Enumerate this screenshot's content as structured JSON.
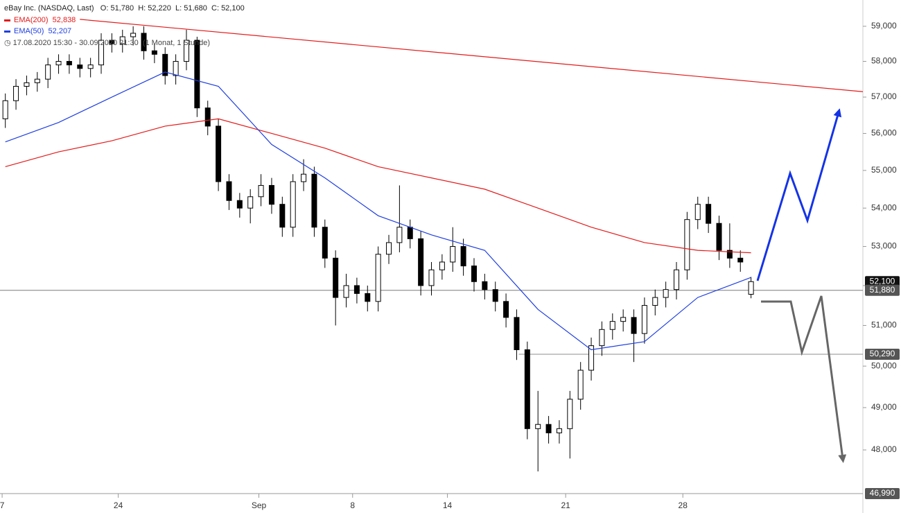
{
  "header": {
    "instrument": "eBay Inc. (NASDAQ, Last)",
    "ohlc": "O: 51,780  H: 52,220  L: 51,680  C: 52,100",
    "ema200": "EMA(200)",
    "ema200_value": "52,838",
    "ema50": "EMA(50)",
    "ema50_value": "52,207",
    "period": "17.08.2020 15:30 - 30.09.2020 21:30",
    "interval": "(1 Monat, 1 Stunde)"
  },
  "chart_data": {
    "type": "candlestick",
    "log_scale": true,
    "xlim": [
      -0.5,
      80.5
    ],
    "ylim": [
      46990,
      59760
    ],
    "xticks": [
      {
        "value": -0.3,
        "label": "7"
      },
      {
        "value": 10.6,
        "label": "24"
      },
      {
        "value": 23.8,
        "label": "Sep"
      },
      {
        "value": 32.6,
        "label": "8"
      },
      {
        "value": 41.5,
        "label": "14"
      },
      {
        "value": 52.6,
        "label": "21"
      },
      {
        "value": 63.6,
        "label": "28"
      }
    ],
    "yticks": [
      {
        "value": 48000,
        "label": "48,000"
      },
      {
        "value": 49000,
        "label": "49,000"
      },
      {
        "value": 50000,
        "label": "50,000"
      },
      {
        "value": 51000,
        "label": "51,000"
      },
      {
        "value": 52000,
        "label": "52,000"
      },
      {
        "value": 53000,
        "label": "53,000"
      },
      {
        "value": 54000,
        "label": "54,000"
      },
      {
        "value": 55000,
        "label": "55,000"
      },
      {
        "value": 56000,
        "label": "56,000"
      },
      {
        "value": 57000,
        "label": "57,000"
      },
      {
        "value": 58000,
        "label": "58,000"
      },
      {
        "value": 59000,
        "label": "59,000"
      }
    ],
    "open": [
      56400,
      56900,
      57300,
      57400,
      57500,
      57900,
      58000,
      57900,
      57800,
      57900,
      58600,
      58500,
      58700,
      58800,
      58300,
      58200,
      57600,
      58000,
      58600,
      56700,
      56200,
      54700,
      54200,
      54000,
      54300,
      54600,
      54100,
      53500,
      54700,
      54900,
      53500,
      52700,
      51700,
      52000,
      51800,
      51600,
      52800,
      53100,
      53500,
      53200,
      52000,
      52400,
      52600,
      53000,
      52500,
      52100,
      51900,
      51600,
      51200,
      50400,
      48500,
      48600,
      48400,
      48500,
      49200,
      49900,
      50500,
      50900,
      51100,
      51200,
      50800,
      51500,
      51700,
      51900,
      52400,
      53700,
      54100,
      53600,
      52900,
      52700,
      51780
    ],
    "high": [
      57100,
      57500,
      57600,
      57700,
      58100,
      58200,
      58200,
      58100,
      58100,
      58800,
      58800,
      58900,
      59000,
      59000,
      58500,
      58400,
      58200,
      58900,
      58700,
      56900,
      56400,
      54900,
      54400,
      54500,
      54900,
      54800,
      54300,
      54900,
      55300,
      55100,
      53700,
      52900,
      52300,
      52200,
      52000,
      53000,
      53300,
      54600,
      53700,
      53400,
      52600,
      52800,
      53500,
      53200,
      52700,
      52300,
      52100,
      51800,
      51400,
      50600,
      49400,
      48800,
      48700,
      49400,
      50100,
      50700,
      51100,
      51300,
      51400,
      51400,
      51700,
      51900,
      52100,
      52600,
      53900,
      54300,
      54300,
      53800,
      53600,
      52900,
      52220
    ],
    "low": [
      56150,
      56650,
      57050,
      57150,
      57250,
      57650,
      57650,
      57550,
      57550,
      57650,
      58250,
      58250,
      58450,
      58050,
      57950,
      57350,
      57350,
      57750,
      56450,
      55950,
      54450,
      53950,
      53750,
      53600,
      54050,
      53850,
      53250,
      53250,
      54450,
      53250,
      52450,
      51000,
      51450,
      51550,
      51350,
      51350,
      52550,
      52850,
      52950,
      51750,
      51750,
      52150,
      52350,
      52250,
      51850,
      51650,
      51350,
      50950,
      50150,
      48250,
      47500,
      48150,
      48150,
      47800,
      48950,
      49650,
      50250,
      50650,
      50850,
      50100,
      50550,
      51250,
      51450,
      51650,
      52150,
      53450,
      53350,
      52650,
      52450,
      52350,
      51680
    ],
    "close": [
      56900,
      57300,
      57400,
      57500,
      57900,
      58000,
      57900,
      57800,
      57900,
      58600,
      58500,
      58700,
      58800,
      58300,
      58200,
      57600,
      58000,
      58600,
      56700,
      56200,
      54700,
      54200,
      54000,
      54300,
      54600,
      54100,
      53500,
      54700,
      54900,
      53500,
      52700,
      51700,
      52000,
      51800,
      51600,
      52800,
      53100,
      53500,
      53200,
      52000,
      52400,
      52600,
      53000,
      52500,
      52100,
      51900,
      51600,
      51200,
      50400,
      48500,
      48600,
      48400,
      48500,
      49200,
      49900,
      50500,
      50900,
      51100,
      51200,
      50800,
      51500,
      51700,
      51900,
      52400,
      53700,
      54100,
      53600,
      52900,
      52700,
      52600,
      52100
    ],
    "series": [
      {
        "name": "EMA(200)",
        "color": "#e31a1a",
        "x": [
          0,
          5,
          10,
          15,
          20,
          25,
          30,
          35,
          40,
          45,
          50,
          55,
          60,
          65,
          70
        ],
        "values": [
          55100,
          55500,
          55800,
          56200,
          56400,
          56000,
          55600,
          55100,
          54800,
          54500,
          54000,
          53500,
          53100,
          52900,
          52838
        ]
      },
      {
        "name": "EMA(50)",
        "color": "#1f3fe0",
        "x": [
          0,
          5,
          10,
          15,
          20,
          25,
          30,
          35,
          40,
          45,
          50,
          55,
          60,
          65,
          70
        ],
        "values": [
          55770,
          56300,
          57000,
          57700,
          57300,
          55700,
          54800,
          53800,
          53300,
          52900,
          51400,
          50400,
          50600,
          51700,
          52207
        ]
      }
    ],
    "trendline": {
      "color": "#e31a1a",
      "x": [
        7,
        80.5
      ],
      "values": [
        59200,
        57150
      ]
    },
    "levels": [
      {
        "value": 51880,
        "x_start": -0.5
      },
      {
        "value": 50290,
        "x_start": 48.2
      }
    ],
    "price_labels": [
      {
        "value": 52100,
        "label": "52,100",
        "color": "#111"
      },
      {
        "value": 51880,
        "label": "51,880",
        "color": "#555"
      },
      {
        "value": 50290,
        "label": "50,290",
        "color": "#555"
      },
      {
        "value": 46990,
        "label": "46,990",
        "color": "#555"
      }
    ]
  }
}
